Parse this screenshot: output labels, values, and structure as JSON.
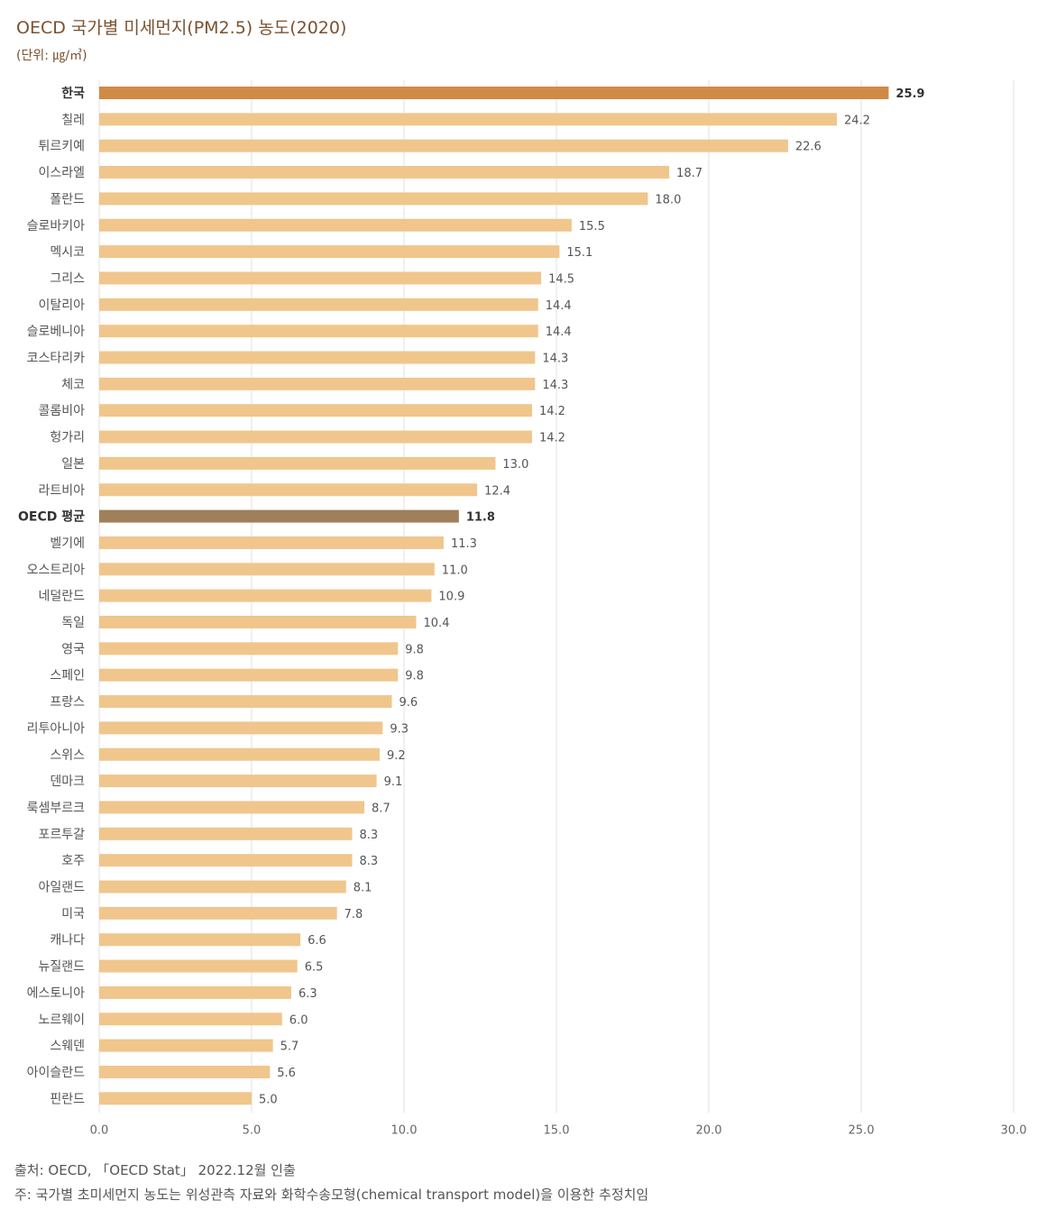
{
  "title": "OECD 국가별 미세먼지(PM2.5) 농도(2020)",
  "unit": "(단위: ㎍/㎥)",
  "source": "출처: OECD, 「OECD Stat」 2022.12월 인출",
  "note": "주: 국가별 초미세먼지 농도는 위성관측 자료와 화학수송모형(chemical transport model)을 이용한 추정치임",
  "colors": {
    "korea": "#d08a45",
    "oecd_avg": "#a0805b",
    "default": "#f0c68c",
    "grid": "#e2e2e2",
    "label": "#555555",
    "highlight_label": "#333333"
  },
  "chart_data": {
    "type": "bar",
    "orientation": "horizontal",
    "title": "OECD 국가별 미세먼지(PM2.5) 농도(2020)",
    "xlabel": "",
    "ylabel": "",
    "xlim": [
      0,
      30
    ],
    "xticks": [
      "0.0",
      "5.0",
      "10.0",
      "15.0",
      "20.0",
      "25.0",
      "30.0"
    ],
    "highlight": [
      "한국",
      "OECD 평균"
    ],
    "categories": [
      "한국",
      "칠레",
      "튀르키예",
      "이스라엘",
      "폴란드",
      "슬로바키아",
      "멕시코",
      "그리스",
      "이탈리아",
      "슬로베니아",
      "코스타리카",
      "체코",
      "콜롬비아",
      "헝가리",
      "일본",
      "라트비아",
      "OECD 평균",
      "벨기에",
      "오스트리아",
      "네덜란드",
      "독일",
      "영국",
      "스페인",
      "프랑스",
      "리투아니아",
      "스위스",
      "덴마크",
      "룩셈부르크",
      "포르투갈",
      "호주",
      "아일랜드",
      "미국",
      "캐나다",
      "뉴질랜드",
      "에스토니아",
      "노르웨이",
      "스웨덴",
      "아이슬란드",
      "핀란드"
    ],
    "values": [
      25.9,
      24.2,
      22.6,
      18.7,
      18.0,
      15.5,
      15.1,
      14.5,
      14.4,
      14.4,
      14.3,
      14.3,
      14.2,
      14.2,
      13.0,
      12.4,
      11.8,
      11.3,
      11.0,
      10.9,
      10.4,
      9.8,
      9.8,
      9.6,
      9.3,
      9.2,
      9.1,
      8.7,
      8.3,
      8.3,
      8.1,
      7.8,
      6.6,
      6.5,
      6.3,
      6.0,
      5.7,
      5.6,
      5.0
    ],
    "value_labels": [
      "25.9",
      "24.2",
      "22.6",
      "18.7",
      "18.0",
      "15.5",
      "15.1",
      "14.5",
      "14.4",
      "14.4",
      "14.3",
      "14.3",
      "14.2",
      "14.2",
      "13.0",
      "12.4",
      "11.8",
      "11.3",
      "11.0",
      "10.9",
      "10.4",
      "9.8",
      "9.8",
      "9.6",
      "9.3",
      "9.2",
      "9.1",
      "8.7",
      "8.3",
      "8.3",
      "8.1",
      "7.8",
      "6.6",
      "6.5",
      "6.3",
      "6.0",
      "5.7",
      "5.6",
      "5.0"
    ]
  }
}
